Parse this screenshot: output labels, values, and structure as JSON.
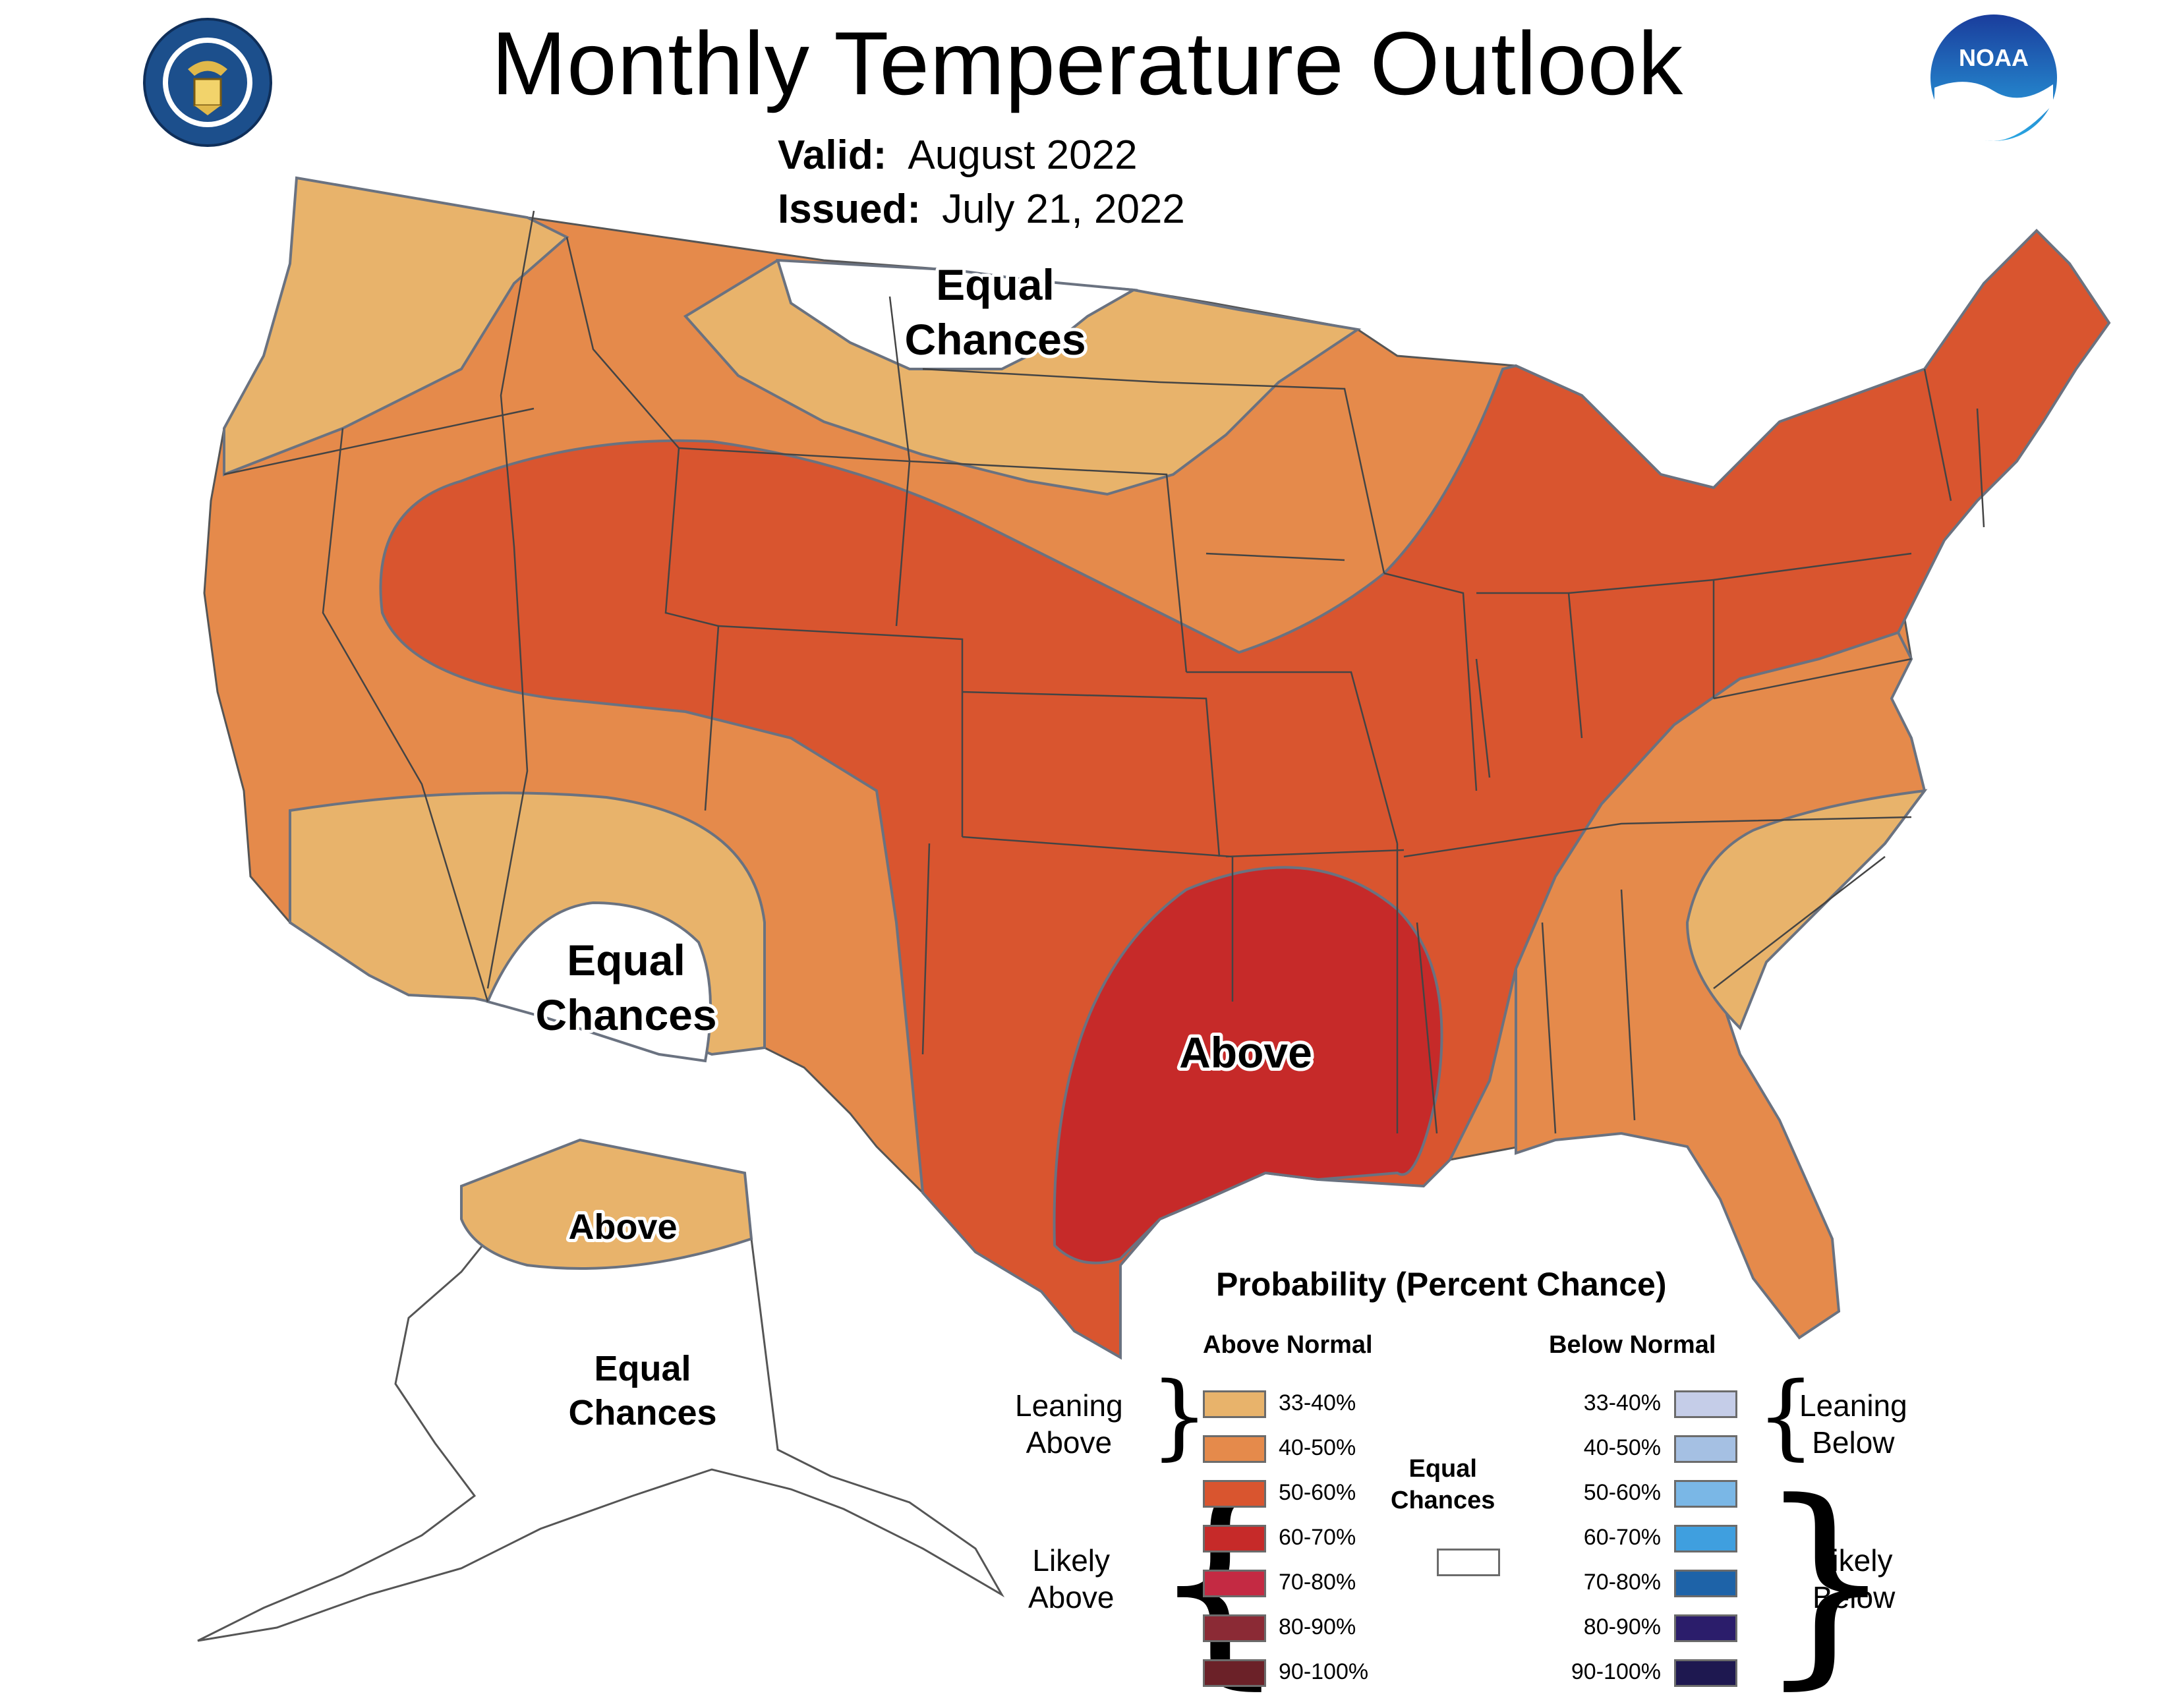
{
  "title": "Monthly Temperature Outlook",
  "valid": {
    "label": "Valid:",
    "value": "August 2022"
  },
  "issued": {
    "label": "Issued:",
    "value": "July 21, 2022"
  },
  "logos": {
    "left": "department-of-commerce-seal",
    "right": "noaa-logo",
    "noaa_text": "NOAA"
  },
  "map_labels": {
    "north_equal": [
      "Equal",
      "Chances"
    ],
    "southwest_equal": [
      "Equal",
      "Chances"
    ],
    "south_above": "Above",
    "alaska_above": "Above",
    "alaska_equal": [
      "Equal",
      "Chances"
    ]
  },
  "legend": {
    "title": "Probability (Percent Chance)",
    "above_header": "Above Normal",
    "below_header": "Below Normal",
    "leaning_above": [
      "Leaning",
      "Above"
    ],
    "likely_above": [
      "Likely",
      "Above"
    ],
    "leaning_below": [
      "Leaning",
      "Below"
    ],
    "likely_below": [
      "Likely",
      "Below"
    ],
    "equal_chances": [
      "Equal",
      "Chances"
    ],
    "equal_color": "#ffffff",
    "above": [
      {
        "range": "33-40%",
        "color": "#e8b36b"
      },
      {
        "range": "40-50%",
        "color": "#e58a4b"
      },
      {
        "range": "50-60%",
        "color": "#d9552f"
      },
      {
        "range": "60-70%",
        "color": "#c62a29"
      },
      {
        "range": "70-80%",
        "color": "#c42a43"
      },
      {
        "range": "80-90%",
        "color": "#8b2a35"
      },
      {
        "range": "90-100%",
        "color": "#6b2128"
      }
    ],
    "below": [
      {
        "range": "33-40%",
        "color": "#c5cde8"
      },
      {
        "range": "40-50%",
        "color": "#a5c0e3"
      },
      {
        "range": "50-60%",
        "color": "#7ab7e6"
      },
      {
        "range": "60-70%",
        "color": "#3f9fdf"
      },
      {
        "range": "70-80%",
        "color": "#1e63a8"
      },
      {
        "range": "80-90%",
        "color": "#2b1d6b"
      },
      {
        "range": "90-100%",
        "color": "#1e1850"
      }
    ]
  }
}
